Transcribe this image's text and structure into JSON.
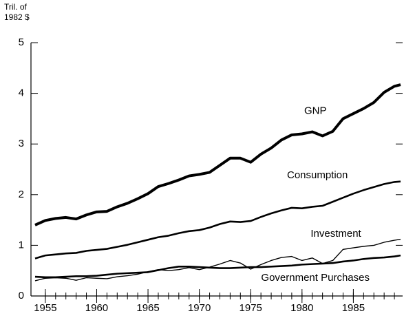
{
  "chart_data": {
    "type": "line",
    "ylabel": [
      "Tril. of",
      "1982 $"
    ],
    "x": [
      1954,
      1955,
      1956,
      1957,
      1958,
      1959,
      1960,
      1961,
      1962,
      1963,
      1964,
      1965,
      1966,
      1967,
      1968,
      1969,
      1970,
      1971,
      1972,
      1973,
      1974,
      1975,
      1976,
      1977,
      1978,
      1979,
      1980,
      1981,
      1982,
      1983,
      1984,
      1985,
      1986,
      1987,
      1988,
      1989,
      1989.6
    ],
    "series": [
      {
        "name": "GNP",
        "color": "#000000",
        "values": [
          1.4,
          1.49,
          1.53,
          1.55,
          1.52,
          1.6,
          1.66,
          1.67,
          1.76,
          1.83,
          1.92,
          2.02,
          2.16,
          2.22,
          2.29,
          2.37,
          2.4,
          2.44,
          2.58,
          2.72,
          2.72,
          2.64,
          2.8,
          2.92,
          3.08,
          3.18,
          3.2,
          3.24,
          3.16,
          3.25,
          3.5,
          3.6,
          3.7,
          3.82,
          4.02,
          4.14,
          4.17
        ]
      },
      {
        "name": "Consumption",
        "color": "#000000",
        "values": [
          0.74,
          0.8,
          0.82,
          0.84,
          0.85,
          0.89,
          0.91,
          0.93,
          0.97,
          1.01,
          1.06,
          1.11,
          1.16,
          1.19,
          1.24,
          1.28,
          1.3,
          1.35,
          1.42,
          1.47,
          1.46,
          1.48,
          1.56,
          1.63,
          1.69,
          1.74,
          1.73,
          1.76,
          1.78,
          1.86,
          1.94,
          2.02,
          2.09,
          2.15,
          2.21,
          2.25,
          2.26
        ]
      },
      {
        "name": "Investment",
        "color": "#000000",
        "values": [
          0.3,
          0.35,
          0.36,
          0.35,
          0.31,
          0.36,
          0.35,
          0.34,
          0.38,
          0.4,
          0.43,
          0.48,
          0.52,
          0.5,
          0.52,
          0.56,
          0.52,
          0.57,
          0.63,
          0.7,
          0.65,
          0.53,
          0.62,
          0.7,
          0.76,
          0.78,
          0.7,
          0.75,
          0.64,
          0.7,
          0.92,
          0.95,
          0.98,
          1.0,
          1.06,
          1.1,
          1.12
        ]
      },
      {
        "name": "Government Purchases",
        "color": "#000000",
        "values": [
          0.38,
          0.37,
          0.37,
          0.38,
          0.39,
          0.39,
          0.4,
          0.42,
          0.44,
          0.45,
          0.46,
          0.47,
          0.51,
          0.55,
          0.58,
          0.58,
          0.57,
          0.56,
          0.55,
          0.55,
          0.56,
          0.57,
          0.57,
          0.58,
          0.59,
          0.6,
          0.62,
          0.63,
          0.64,
          0.65,
          0.68,
          0.7,
          0.73,
          0.75,
          0.76,
          0.78,
          0.8
        ]
      }
    ],
    "xlim": [
      1953.6,
      1989.8
    ],
    "xticks": [
      1955,
      1960,
      1965,
      1970,
      1975,
      1980,
      1985
    ],
    "xminor_ticks": [
      1955,
      1956,
      1957,
      1958,
      1959,
      1960,
      1961,
      1962,
      1963,
      1964,
      1965,
      1966,
      1967,
      1968,
      1969,
      1970,
      1971,
      1972,
      1973,
      1974,
      1975,
      1976,
      1977,
      1978,
      1979,
      1980,
      1981,
      1982,
      1983,
      1984,
      1985,
      1986,
      1987,
      1988,
      1989
    ],
    "ylim": [
      0,
      5
    ],
    "yticks": [
      0,
      1,
      2,
      3,
      4,
      5
    ],
    "grid": false
  }
}
